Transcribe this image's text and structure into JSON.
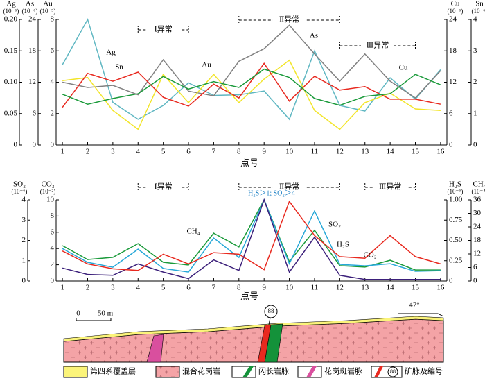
{
  "chart_data": [
    {
      "type": "line",
      "x_label": "点号",
      "x": [
        1,
        2,
        3,
        4,
        5,
        6,
        7,
        8,
        9,
        10,
        11,
        12,
        13,
        14,
        15,
        16
      ],
      "xlim": [
        0.75,
        16.25
      ],
      "xticks": [
        1,
        2,
        3,
        4,
        5,
        6,
        7,
        8,
        9,
        10,
        11,
        12,
        13,
        14,
        15,
        16
      ],
      "axes": [
        {
          "label": "Ag",
          "unit": "(10⁻⁶)",
          "side": "left",
          "lim": [
            0,
            0.2
          ],
          "ticks": [
            0,
            0.05,
            {
              "value": 0.1,
              "label": "0.10"
            },
            0.15,
            {
              "value": 0.2,
              "label": "0.20"
            }
          ]
        },
        {
          "label": "As",
          "unit": "(10⁻⁶)",
          "side": "left",
          "lim": [
            0,
            24
          ],
          "ticks": [
            0,
            6,
            12,
            18,
            24
          ]
        },
        {
          "label": "Au",
          "unit": "(10⁻⁹)",
          "side": "left",
          "lim": [
            0,
            8
          ],
          "ticks": [
            0,
            2,
            4,
            6,
            8
          ]
        },
        {
          "label": "Cu",
          "unit": "(10⁻⁶)",
          "side": "right",
          "lim": [
            0,
            24
          ],
          "ticks": [
            0,
            6,
            12,
            18,
            24
          ]
        },
        {
          "label": "Sn",
          "unit": "(10⁻⁶)",
          "side": "right",
          "lim": [
            0,
            4
          ],
          "ticks": [
            0,
            1,
            2,
            3,
            4
          ]
        }
      ],
      "series": [
        {
          "name": "Ag",
          "axis": "Ag",
          "color": "#5fb7c2",
          "values": [
            0.128,
            0.2,
            0.068,
            0.041,
            0.063,
            0.099,
            0.079,
            0.08,
            0.086,
            0.041,
            0.15,
            0.063,
            0.054,
            0.107,
            0.073,
            0.12
          ]
        },
        {
          "name": "As",
          "axis": "As",
          "color": "#808080",
          "values": [
            12,
            11,
            11.4,
            9.6,
            16.3,
            10.3,
            9.4,
            16,
            18.4,
            22.9,
            17.4,
            12.2,
            17.4,
            12.2,
            9,
            14.2
          ]
        },
        {
          "name": "Au",
          "axis": "Au",
          "color": "#f2e52a",
          "values": [
            4.1,
            4.3,
            2.2,
            1,
            4.5,
            2.7,
            4.5,
            2.7,
            4.2,
            5.4,
            2.2,
            1,
            2.7,
            3.3,
            2.3,
            2.2
          ]
        },
        {
          "name": "Sn",
          "axis": "Sn",
          "color": "#e8291f",
          "values": [
            1.2,
            2.28,
            2.03,
            2.32,
            1.52,
            1.24,
            1.94,
            1.5,
            2.6,
            1.4,
            2.19,
            1.75,
            1.86,
            1.46,
            1.46,
            1.3
          ]
        },
        {
          "name": "Cu",
          "axis": "Cu",
          "color": "#1a9a3a",
          "values": [
            9.7,
            7.8,
            8.9,
            9.8,
            13.1,
            10.7,
            12.1,
            11,
            14.5,
            12.9,
            8.9,
            7.6,
            9.3,
            9.8,
            13.5,
            11.5
          ]
        }
      ],
      "anomalies": [
        {
          "label": "Ⅰ异常",
          "from": 4,
          "to": 6
        },
        {
          "label": "Ⅱ异常",
          "from": 8,
          "to": 12
        },
        {
          "label": "Ⅲ异常",
          "from": 12,
          "to": 15
        }
      ]
    },
    {
      "type": "line",
      "x_label": "点号",
      "x": [
        1,
        2,
        3,
        4,
        5,
        6,
        7,
        8,
        9,
        10,
        11,
        12,
        13,
        14,
        15,
        16
      ],
      "xlim": [
        0.75,
        16.25
      ],
      "xticks": [
        1,
        2,
        3,
        4,
        5,
        6,
        7,
        8,
        9,
        10,
        11,
        12,
        13,
        14,
        15,
        16
      ],
      "axes": [
        {
          "label": "SO₂",
          "unit": "(10⁻⁶)",
          "side": "left",
          "lim": [
            0,
            4
          ],
          "ticks": [
            0,
            1,
            2,
            3,
            4
          ]
        },
        {
          "label": "CO₂",
          "unit": "(10⁻²)",
          "side": "left",
          "lim": [
            0,
            10
          ],
          "ticks": [
            0,
            2,
            4,
            6,
            8,
            10
          ]
        },
        {
          "label": "H₂S",
          "unit": "(10⁻⁶)",
          "side": "right",
          "lim": [
            0,
            1
          ],
          "ticks": [
            0,
            0.25,
            {
              "value": 0.5,
              "label": "0.50"
            },
            0.75,
            {
              "value": 1,
              "label": "1.00"
            }
          ]
        },
        {
          "label": "CH₄",
          "unit": "(10⁻⁴)",
          "side": "right",
          "lim": [
            0,
            36
          ],
          "ticks": [
            0,
            6,
            12,
            18,
            24,
            30,
            36
          ]
        }
      ],
      "series": [
        {
          "name": "CH₄",
          "axis": "CH₄",
          "color": "#1a9a3a",
          "values": [
            15.7,
            9.5,
            10.5,
            16.6,
            8.3,
            7.1,
            21.2,
            15.1,
            36,
            8.6,
            22.5,
            6.8,
            6.2,
            9.2,
            4.9,
            4.9
          ]
        },
        {
          "name": "SO₂",
          "axis": "SO₂",
          "color": "#27a8d8",
          "values": [
            1.6,
            0.92,
            0.68,
            1.57,
            0.62,
            0.44,
            2.12,
            1.16,
            4,
            0.85,
            3.45,
            0.82,
            0.75,
            0.85,
            0.48,
            0.51
          ]
        },
        {
          "name": "H₂S",
          "axis": "H₂S",
          "color": "#3b1f7a",
          "values": [
            0.16,
            0.08,
            0.07,
            0.21,
            0.11,
            0.03,
            0.26,
            0.13,
            1,
            0.11,
            0.54,
            0.07,
            0.02,
            0.02,
            0.02,
            0.02
          ]
        },
        {
          "name": "CO₂",
          "axis": "CO₂",
          "color": "#e8291f",
          "values": [
            3.7,
            2.1,
            1.5,
            1.3,
            3.3,
            2.1,
            3.5,
            3.3,
            1.4,
            9.8,
            5.6,
            3,
            2.8,
            5.6,
            3,
            2.1
          ]
        }
      ],
      "annotation": "H₂S＞1; SO₂＞4",
      "anomalies": [
        {
          "label": "Ⅰ异常",
          "from": 4,
          "to": 6
        },
        {
          "label": "Ⅱ异常",
          "from": 8,
          "to": 12
        },
        {
          "label": "Ⅲ异常",
          "from": 13,
          "to": 15
        }
      ]
    }
  ],
  "section": {
    "scale_zero": "0",
    "scale_length": "50 m",
    "strike": "47°",
    "vein_number": "88",
    "legend": [
      "第四系覆盖层",
      "混合花岗岩",
      "闪长岩脉",
      "花岗斑岩脉",
      "矿脉及编号"
    ]
  }
}
